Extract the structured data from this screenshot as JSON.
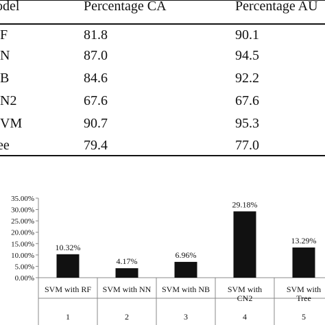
{
  "table": {
    "headers": [
      "odel",
      "Percentage CA",
      "Percentage AU"
    ],
    "rows": [
      [
        "F",
        "81.8",
        "90.1"
      ],
      [
        "N",
        "87.0",
        "94.5"
      ],
      [
        "B",
        "84.6",
        "92.2"
      ],
      [
        "N2",
        "67.6",
        "67.6"
      ],
      [
        "VM",
        "90.7",
        "95.3"
      ],
      [
        "ee",
        "79.4",
        "77.0"
      ]
    ]
  },
  "chart_data": {
    "type": "bar",
    "categories": [
      "SVM with RF",
      "SVM with NN",
      "SVM with NB",
      "SVM with CN2",
      "SVM with Tree"
    ],
    "category_lines": [
      [
        "SVM with RF"
      ],
      [
        "SVM with NN"
      ],
      [
        "SVM with NB"
      ],
      [
        "SVM with",
        "CN2"
      ],
      [
        "SVM with",
        "Tree"
      ]
    ],
    "category_numbers": [
      "1",
      "2",
      "3",
      "4",
      "5"
    ],
    "values": [
      10.32,
      4.17,
      6.96,
      29.18,
      13.29
    ],
    "data_labels": [
      "10.32%",
      "4.17%",
      "6.96%",
      "29.18%",
      "13.29%"
    ],
    "y_ticks": [
      "0.00%",
      "5.00%",
      "10.00%",
      "15.00%",
      "20.00%",
      "25.00%",
      "30.00%",
      "35.00%"
    ],
    "ylim": [
      0,
      35
    ],
    "grid": false,
    "bar_color": "#111111",
    "axis_color": "#888888"
  }
}
